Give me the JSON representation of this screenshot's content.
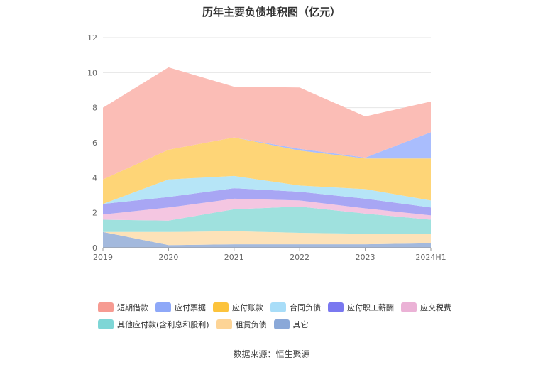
{
  "chart_data": {
    "type": "area",
    "stacked": true,
    "title": "历年主要负债堆积图（亿元）",
    "categories": [
      "2019",
      "2020",
      "2021",
      "2022",
      "2023",
      "2024H1"
    ],
    "ylim": [
      0,
      12
    ],
    "yticks": [
      0,
      2,
      4,
      6,
      8,
      10,
      12
    ],
    "grid": true,
    "legend_position": "bottom",
    "series": [
      {
        "name": "其它",
        "color": "#a3b9dd",
        "values": [
          0.9,
          0.15,
          0.2,
          0.2,
          0.2,
          0.25
        ]
      },
      {
        "name": "租赁负债",
        "color": "#fde2b8",
        "values": [
          0.0,
          0.75,
          0.75,
          0.65,
          0.6,
          0.55
        ]
      },
      {
        "name": "其他应付款(含利息和股利)",
        "color": "#9fe1de",
        "values": [
          0.7,
          0.65,
          1.25,
          1.5,
          1.15,
          0.8
        ]
      },
      {
        "name": "应交税费",
        "color": "#f4c6e1",
        "values": [
          0.3,
          0.75,
          0.6,
          0.35,
          0.3,
          0.25
        ]
      },
      {
        "name": "应付职工薪酬",
        "color": "#a8a6f4",
        "values": [
          0.6,
          0.6,
          0.6,
          0.5,
          0.55,
          0.45
        ]
      },
      {
        "name": "合同负债",
        "color": "#b6e5f7",
        "values": [
          0.0,
          1.0,
          0.7,
          0.35,
          0.55,
          0.4
        ]
      },
      {
        "name": "应付账款",
        "color": "#fed577",
        "values": [
          1.4,
          1.7,
          2.2,
          2.0,
          1.75,
          2.4
        ]
      },
      {
        "name": "应付票据",
        "color": "#a9bdfd",
        "values": [
          0.0,
          0.0,
          0.0,
          0.1,
          0.05,
          1.5
        ]
      },
      {
        "name": "短期借款",
        "color": "#fbbdb6",
        "values": [
          4.1,
          4.7,
          2.9,
          3.5,
          2.35,
          1.75
        ]
      }
    ]
  },
  "legend": {
    "row1": [
      {
        "label": "短期借款",
        "color": "#f69b92"
      },
      {
        "label": "应付票据",
        "color": "#8ea8f8"
      },
      {
        "label": "应付账款",
        "color": "#fcc33c"
      },
      {
        "label": "合同负债",
        "color": "#a8ddf8"
      },
      {
        "label": "应付职工薪酬",
        "color": "#7a78f0"
      },
      {
        "label": "应交税费",
        "color": "#ebb2d6"
      }
    ],
    "row2": [
      {
        "label": "其他应付款(含利息和股利)",
        "color": "#7ed6d6"
      },
      {
        "label": "租赁负债",
        "color": "#fdd496"
      },
      {
        "label": "其它",
        "color": "#8aa8d8"
      }
    ]
  },
  "source": "数据来源：恒生聚源"
}
